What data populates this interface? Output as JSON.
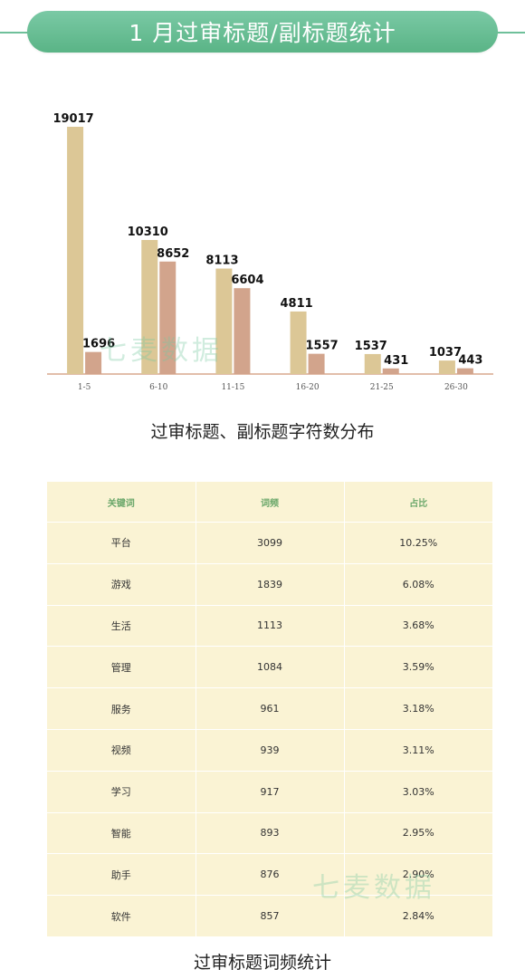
{
  "header": {
    "title": "1 月过审标题/副标题统计"
  },
  "watermark_text": "七麦数据",
  "chart_data": {
    "type": "bar",
    "title": "过审标题、副标题字符数分布",
    "categories": [
      "1-5",
      "6-10",
      "11-15",
      "16-20",
      "21-25",
      "26-30"
    ],
    "series": [
      {
        "values": [
          19017,
          10310,
          8113,
          4811,
          1537,
          1037
        ],
        "color": "#dcc796"
      },
      {
        "values": [
          1696,
          8652,
          6604,
          1557,
          431,
          443
        ],
        "color": "#d2a48c"
      }
    ],
    "ylim": [
      0,
      19017
    ],
    "grid": false,
    "legend": "none"
  },
  "table": {
    "title": "过审标题词频统计",
    "columns": [
      "关键词",
      "词频",
      "占比"
    ],
    "rows": [
      [
        "平台",
        "3099",
        "10.25%"
      ],
      [
        "游戏",
        "1839",
        "6.08%"
      ],
      [
        "生活",
        "1113",
        "3.68%"
      ],
      [
        "管理",
        "1084",
        "3.59%"
      ],
      [
        "服务",
        "961",
        "3.18%"
      ],
      [
        "视频",
        "939",
        "3.11%"
      ],
      [
        "学习",
        "917",
        "3.03%"
      ],
      [
        "智能",
        "893",
        "2.95%"
      ],
      [
        "助手",
        "876",
        "2.90%"
      ],
      [
        "软件",
        "857",
        "2.84%"
      ]
    ]
  }
}
